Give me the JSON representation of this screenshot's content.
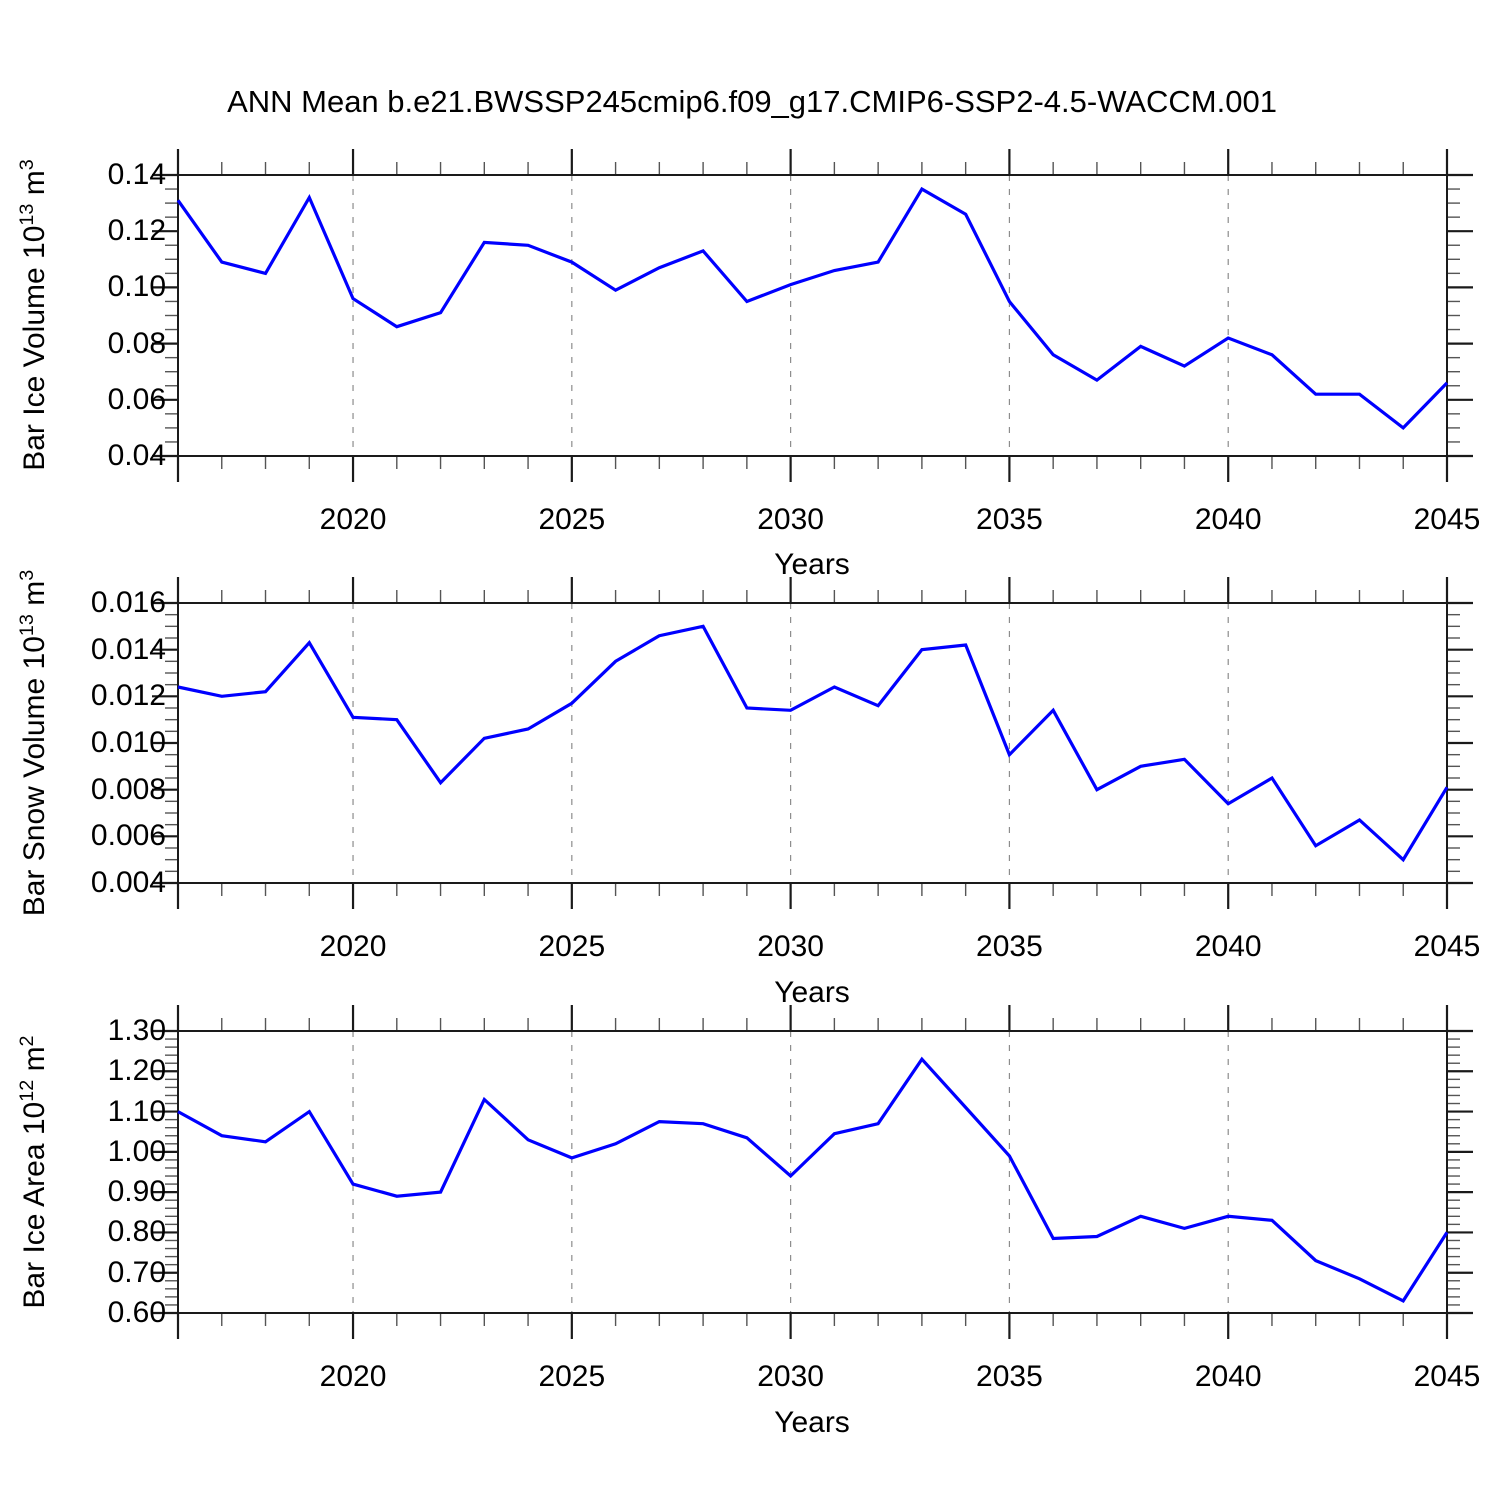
{
  "title": "ANN Mean b.e21.BWSSP245cmip6.f09_g17.CMIP6-SSP2-4.5-WACCM.001",
  "background_color": "#ffffff",
  "line_color": "#0000ff",
  "chart_data": [
    {
      "type": "line",
      "panel": "ice-volume",
      "ylabel": "Bar Ice Volume 10^13 m^3",
      "ylabel_parts": {
        "base": "Bar Ice Volume 10",
        "exp": "13",
        "unit": " m",
        "unit_exp": "3"
      },
      "xlabel": "Years",
      "xlim": [
        2016,
        2045
      ],
      "ylim": [
        0.04,
        0.14
      ],
      "xtick_values": [
        2020,
        2025,
        2030,
        2035,
        2040,
        2045
      ],
      "xtick_labels": [
        "2020",
        "2025",
        "2030",
        "2035",
        "2040",
        "2045"
      ],
      "grid_x": [
        2020,
        2025,
        2030,
        2035,
        2040
      ],
      "x_minor_step": 1,
      "ytick_values": [
        0.04,
        0.06,
        0.08,
        0.1,
        0.12,
        0.14
      ],
      "ytick_labels": [
        "0.04",
        "0.06",
        "0.08",
        "0.10",
        "0.12",
        "0.14"
      ],
      "y_minor_step": 0.005,
      "line_color": "#0000ff",
      "x": [
        2016,
        2017,
        2018,
        2019,
        2020,
        2021,
        2022,
        2023,
        2024,
        2025,
        2026,
        2027,
        2028,
        2029,
        2030,
        2031,
        2032,
        2033,
        2034,
        2035,
        2036,
        2037,
        2038,
        2039,
        2040,
        2041,
        2042,
        2043,
        2044,
        2045
      ],
      "values": [
        0.131,
        0.109,
        0.105,
        0.132,
        0.096,
        0.086,
        0.091,
        0.116,
        0.115,
        0.109,
        0.099,
        0.107,
        0.113,
        0.095,
        0.101,
        0.106,
        0.109,
        0.135,
        0.126,
        0.095,
        0.076,
        0.067,
        0.079,
        0.072,
        0.082,
        0.076,
        0.062,
        0.062,
        0.05,
        0.066
      ]
    },
    {
      "type": "line",
      "panel": "snow-volume",
      "ylabel": "Bar Snow Volume 10^13 m^3",
      "ylabel_parts": {
        "base": "Bar Snow Volume 10",
        "exp": "13",
        "unit": " m",
        "unit_exp": "3"
      },
      "xlabel": "Years",
      "xlim": [
        2016,
        2045
      ],
      "ylim": [
        0.004,
        0.016
      ],
      "xtick_values": [
        2020,
        2025,
        2030,
        2035,
        2040,
        2045
      ],
      "xtick_labels": [
        "2020",
        "2025",
        "2030",
        "2035",
        "2040",
        "2045"
      ],
      "grid_x": [
        2020,
        2025,
        2030,
        2035,
        2040
      ],
      "x_minor_step": 1,
      "ytick_values": [
        0.004,
        0.006,
        0.008,
        0.01,
        0.012,
        0.014,
        0.016
      ],
      "ytick_labels": [
        "0.004",
        "0.006",
        "0.008",
        "0.010",
        "0.012",
        "0.014",
        "0.016"
      ],
      "y_minor_step": 0.0005,
      "line_color": "#0000ff",
      "x": [
        2016,
        2017,
        2018,
        2019,
        2020,
        2021,
        2022,
        2023,
        2024,
        2025,
        2026,
        2027,
        2028,
        2029,
        2030,
        2031,
        2032,
        2033,
        2034,
        2035,
        2036,
        2037,
        2038,
        2039,
        2040,
        2041,
        2042,
        2043,
        2044,
        2045
      ],
      "values": [
        0.0124,
        0.012,
        0.0122,
        0.0143,
        0.0111,
        0.011,
        0.0083,
        0.0102,
        0.0106,
        0.0117,
        0.0135,
        0.0146,
        0.015,
        0.0115,
        0.0114,
        0.0124,
        0.0116,
        0.014,
        0.0142,
        0.0095,
        0.0114,
        0.008,
        0.009,
        0.0093,
        0.0074,
        0.0085,
        0.0056,
        0.0067,
        0.005,
        0.0081
      ]
    },
    {
      "type": "line",
      "panel": "ice-area",
      "ylabel": "Bar Ice Area 10^12 m^2",
      "ylabel_parts": {
        "base": "Bar Ice Area 10",
        "exp": "12",
        "unit": " m",
        "unit_exp": "2"
      },
      "xlabel": "Years",
      "xlim": [
        2016,
        2045
      ],
      "ylim": [
        0.6,
        1.3
      ],
      "xtick_values": [
        2020,
        2025,
        2030,
        2035,
        2040,
        2045
      ],
      "xtick_labels": [
        "2020",
        "2025",
        "2030",
        "2035",
        "2040",
        "2045"
      ],
      "grid_x": [
        2020,
        2025,
        2030,
        2035,
        2040
      ],
      "x_minor_step": 1,
      "ytick_values": [
        0.6,
        0.7,
        0.8,
        0.9,
        1.0,
        1.1,
        1.2,
        1.3
      ],
      "ytick_labels": [
        "0.60",
        "0.70",
        "0.80",
        "0.90",
        "1.00",
        "1.10",
        "1.20",
        "1.30"
      ],
      "y_minor_step": 0.02,
      "line_color": "#0000ff",
      "x": [
        2016,
        2017,
        2018,
        2019,
        2020,
        2021,
        2022,
        2023,
        2024,
        2025,
        2026,
        2027,
        2028,
        2029,
        2030,
        2031,
        2032,
        2033,
        2034,
        2035,
        2036,
        2037,
        2038,
        2039,
        2040,
        2041,
        2042,
        2043,
        2044,
        2045
      ],
      "values": [
        1.1,
        1.04,
        1.025,
        1.1,
        0.92,
        0.89,
        0.9,
        1.13,
        1.03,
        0.985,
        1.02,
        1.075,
        1.07,
        1.035,
        0.94,
        1.045,
        1.07,
        1.23,
        1.11,
        0.99,
        0.785,
        0.79,
        0.84,
        0.81,
        0.84,
        0.83,
        0.73,
        0.685,
        0.63,
        0.8
      ]
    }
  ]
}
